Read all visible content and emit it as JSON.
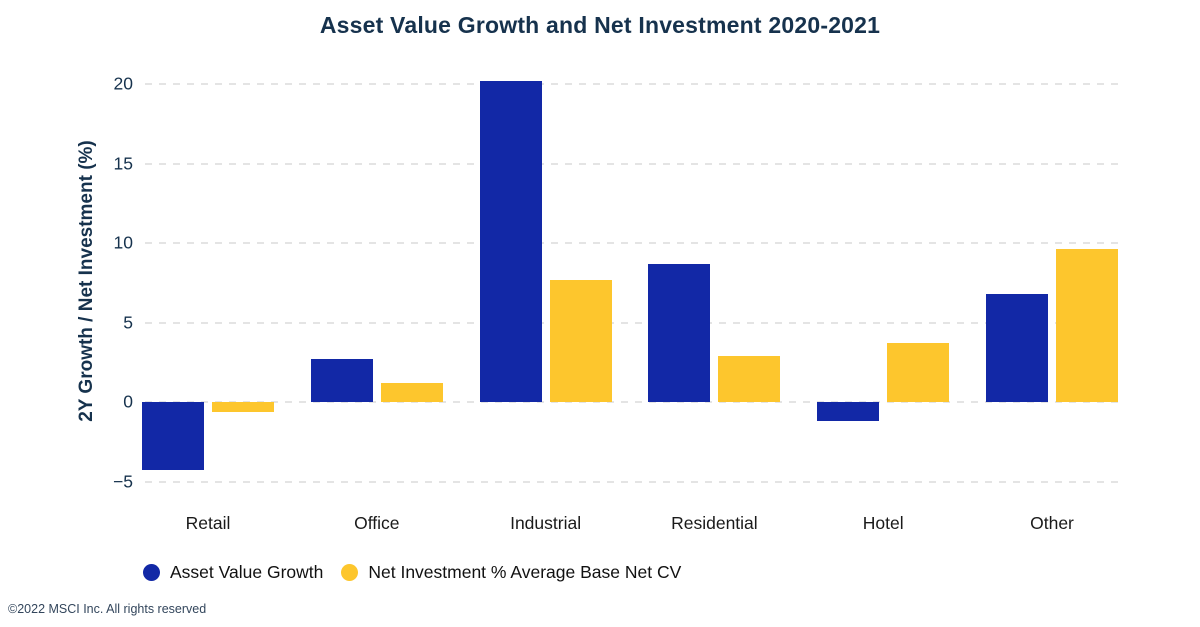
{
  "title": "Asset Value Growth and Net Investment 2020-2021",
  "footer": "©2022 MSCI Inc. All rights reserved",
  "colors": {
    "background": "#ffffff",
    "series_blue": "#1228a6",
    "series_yellow": "#fdc62d",
    "heading_text": "#16324d",
    "axis_text": "#16324d",
    "category_text": "#1a1a1a",
    "gridline": "#e4e4e4",
    "footer_text": "#33465c"
  },
  "chart_data": {
    "type": "bar",
    "title": "Asset Value Growth and Net Investment 2020-2021",
    "categories": [
      "Retail",
      "Office",
      "Industrial",
      "Residential",
      "Hotel",
      "Other"
    ],
    "series": [
      {
        "name": "Asset Value Growth",
        "color": "#1228a6",
        "values": [
          -4.3,
          2.7,
          20.2,
          8.7,
          -1.2,
          6.8
        ]
      },
      {
        "name": "Net Investment % Average Base Net CV",
        "color": "#fdc62d",
        "values": [
          -0.6,
          1.2,
          7.7,
          2.9,
          3.7,
          9.6
        ]
      }
    ],
    "xlabel": "",
    "ylabel": "2Y Growth / Net Investment (%)",
    "ylim": [
      -5,
      20
    ],
    "yticks": [
      -5,
      0,
      5,
      10,
      15,
      20
    ],
    "grid": "horizontal-dashed",
    "legend_position": "bottom-left"
  },
  "legend": {
    "items": [
      {
        "label": "Asset Value Growth",
        "color": "#1228a6"
      },
      {
        "label": "Net Investment % Average Base Net CV",
        "color": "#fdc62d"
      }
    ]
  }
}
